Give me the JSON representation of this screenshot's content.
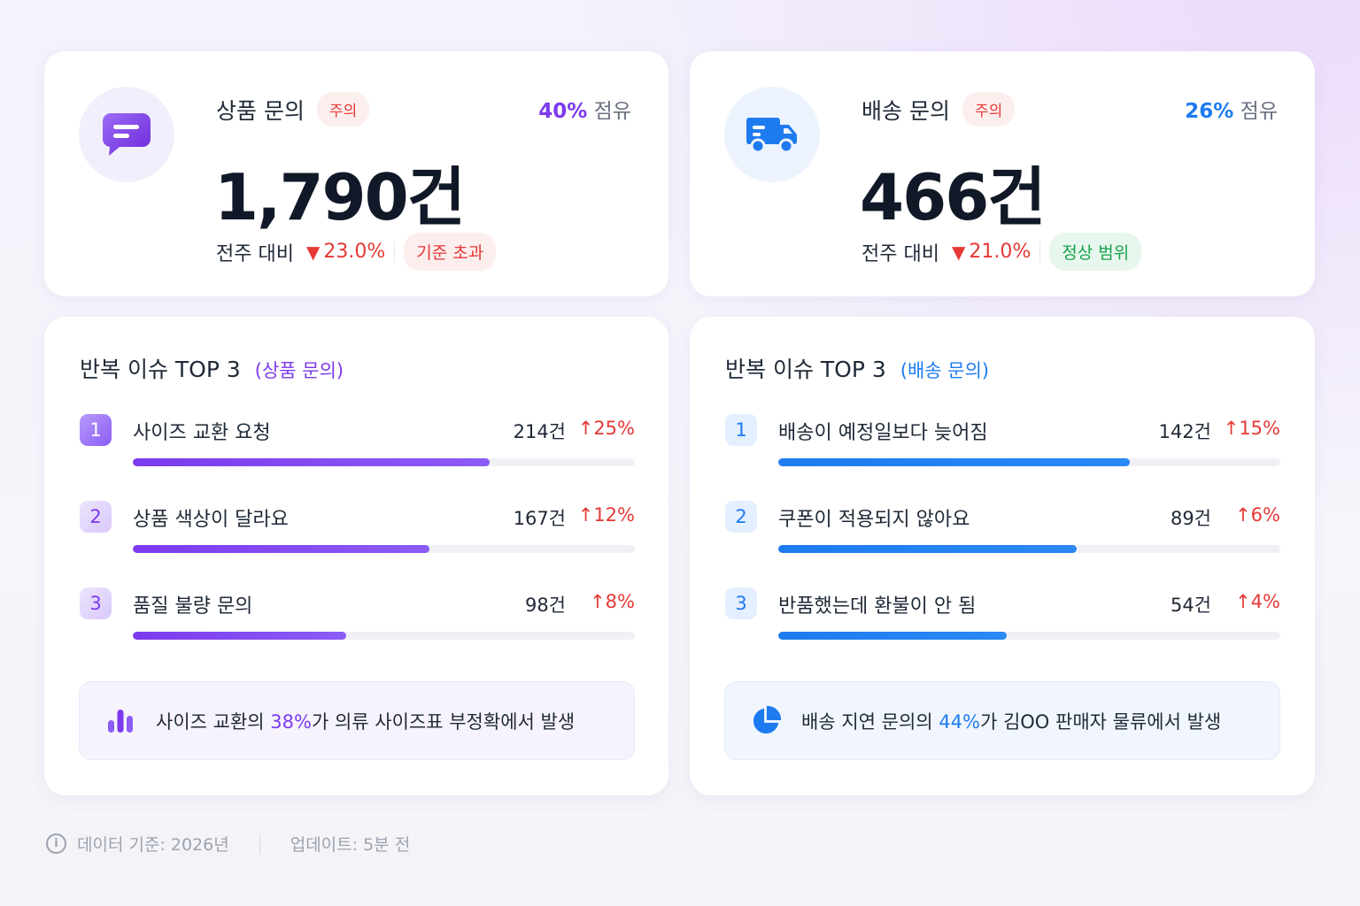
{
  "product_card": {
    "title": "상품 문의",
    "badge": "주의",
    "share_pct": "40%",
    "share_suffix": " 점유",
    "count": "1,790건",
    "compare_label": "전주 대비",
    "change_arrow": "▼",
    "change": "23.0%",
    "status": "기준 초과",
    "icon": "chat-bubble-icon",
    "accent": "#7c3aed"
  },
  "delivery_card": {
    "title": "배송 문의",
    "badge": "주의",
    "share_pct": "26%",
    "share_suffix": " 점유",
    "count": "466건",
    "compare_label": "전주 대비",
    "change_arrow": "▼",
    "change": "21.0%",
    "status": "정상 범위",
    "icon": "truck-icon",
    "accent": "#1e7bef"
  },
  "top_product": {
    "title": "반복 이슈 TOP 3",
    "subtitle": "(상품 문의)",
    "items": [
      {
        "rank": "1",
        "name": "사이즈 교환 요청",
        "count": "214건",
        "change": "↑25%",
        "level": 0.71
      },
      {
        "rank": "2",
        "name": "상품 색상이 달라요",
        "count": "167건",
        "change": "↑12%",
        "level": 0.59
      },
      {
        "rank": "3",
        "name": "품질 불량 문의",
        "count": "98건",
        "change": "↑8%",
        "level": 0.425
      }
    ],
    "insight_pre": "사이즈 교환의 ",
    "insight_hl": "38%",
    "insight_post": "가 의류 사이즈표 부정확에서 발생",
    "insight_icon": "bar-chart-icon"
  },
  "top_delivery": {
    "title": "반복 이슈 TOP 3",
    "subtitle": "(배송 문의)",
    "items": [
      {
        "rank": "1",
        "name": "배송이 예정일보다 늦어짐",
        "count": "142건",
        "change": "↑15%",
        "level": 0.7
      },
      {
        "rank": "2",
        "name": "쿠폰이 적용되지 않아요",
        "count": "89건",
        "change": "↑6%",
        "level": 0.595
      },
      {
        "rank": "3",
        "name": "반품했는데 환불이 안 됨",
        "count": "54건",
        "change": "↑4%",
        "level": 0.455
      }
    ],
    "insight_pre": "배송 지연 문의의 ",
    "insight_hl": "44%",
    "insight_post": "가 김OO 판매자 물류에서 발생",
    "insight_icon": "pie-chart-icon"
  },
  "footer": {
    "data_basis": "데이터 기준: 2026년",
    "updated": "업데이트: 5분 전",
    "icon": "info-icon"
  }
}
